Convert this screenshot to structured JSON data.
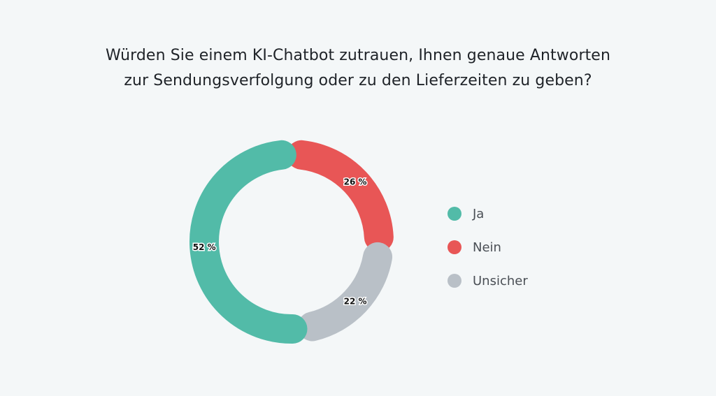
{
  "chart_data": {
    "type": "pie",
    "title_lines": [
      "Würden Sie einem KI-Chatbot zutrauen, Ihnen genaue Antworten",
      "zur Sendungsverfolgung oder zu den Lieferzeiten zu geben?"
    ],
    "categories": [
      "Ja",
      "Nein",
      "Unsicher"
    ],
    "values": [
      52,
      26,
      22
    ],
    "value_labels": [
      "52 %",
      "26 %",
      "22 %"
    ],
    "colors": [
      "#52bba8",
      "#e85656",
      "#b9c0c7"
    ],
    "legend_position": "right"
  }
}
